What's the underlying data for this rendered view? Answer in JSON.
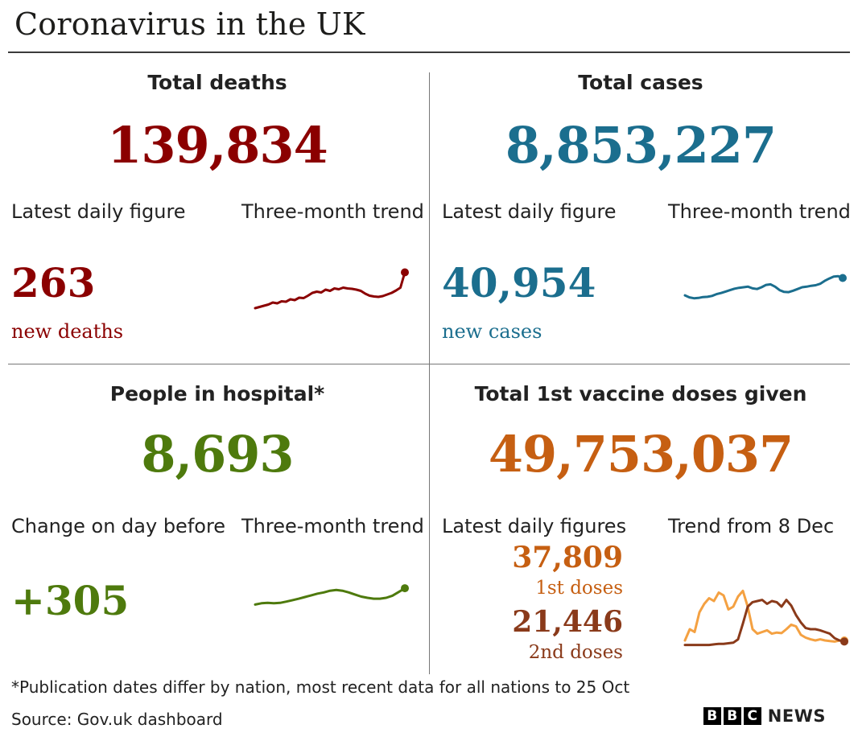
{
  "title": "Coronavirus in the UK",
  "deaths": {
    "heading": "Total deaths",
    "total": "139,834",
    "latest_label": "Latest daily figure",
    "trend_label": "Three-month trend",
    "daily": "263",
    "daily_label": "new deaths",
    "color": "#8b0000"
  },
  "cases": {
    "heading": "Total cases",
    "total": "8,853,227",
    "latest_label": "Latest daily figure",
    "trend_label": "Three-month trend",
    "daily": "40,954",
    "daily_label": "new cases",
    "color": "#1b6e8e"
  },
  "hospital": {
    "heading": "People in hospital*",
    "total": "8,693",
    "latest_label": "Change on day before",
    "trend_label": "Three-month trend",
    "daily": "+305",
    "color": "#4e7a0d"
  },
  "vaccine": {
    "heading": "Total 1st vaccine doses given",
    "total": "49,753,037",
    "latest_label": "Latest daily figures",
    "trend_label": "Trend from 8 Dec",
    "first_doses": "37,809",
    "first_label": "1st doses",
    "second_doses": "21,446",
    "second_label": "2nd doses",
    "color_total": "#c65f12",
    "color_first": "#f4a142",
    "color_second": "#8a3a1a"
  },
  "footnote": "*Publication dates differ by nation, most recent data for all nations to 25 Oct",
  "source": "Source: Gov.uk dashboard",
  "logo": {
    "letters": [
      "B",
      "B",
      "C"
    ],
    "word": "NEWS"
  },
  "chart_data": [
    {
      "type": "line",
      "series": [
        {
          "values": [
            0.04,
            0.07,
            0.1,
            0.13,
            0.18,
            0.16,
            0.21,
            0.2,
            0.26,
            0.24,
            0.3,
            0.29,
            0.35,
            0.42,
            0.45,
            0.43,
            0.5,
            0.47,
            0.53,
            0.51,
            0.55,
            0.53,
            0.52,
            0.5,
            0.47,
            0.4,
            0.35,
            0.33,
            0.32,
            0.34,
            0.38,
            0.42,
            0.48,
            0.55,
            0.93
          ]
        }
      ]
    },
    {
      "type": "line",
      "series": [
        {
          "values": [
            0.22,
            0.15,
            0.12,
            0.13,
            0.16,
            0.17,
            0.2,
            0.26,
            0.3,
            0.35,
            0.4,
            0.45,
            0.48,
            0.5,
            0.52,
            0.46,
            0.44,
            0.5,
            0.58,
            0.6,
            0.52,
            0.4,
            0.34,
            0.33,
            0.38,
            0.44,
            0.5,
            0.52,
            0.55,
            0.57,
            0.62,
            0.72,
            0.8,
            0.87,
            0.88,
            0.82
          ]
        }
      ]
    },
    {
      "type": "line",
      "series": [
        {
          "values": [
            0.14,
            0.2,
            0.22,
            0.2,
            0.22,
            0.28,
            0.35,
            0.42,
            0.5,
            0.58,
            0.66,
            0.72,
            0.8,
            0.84,
            0.8,
            0.72,
            0.62,
            0.52,
            0.46,
            0.42,
            0.42,
            0.46,
            0.56,
            0.74,
            0.92
          ]
        }
      ]
    },
    {
      "type": "line",
      "series": [
        {
          "name": "1st doses",
          "values": [
            0.1,
            0.3,
            0.25,
            0.6,
            0.75,
            0.85,
            0.8,
            0.95,
            0.9,
            0.65,
            0.7,
            0.88,
            0.98,
            0.7,
            0.3,
            0.22,
            0.25,
            0.28,
            0.22,
            0.24,
            0.23,
            0.3,
            0.38,
            0.35,
            0.2,
            0.15,
            0.12,
            0.1,
            0.12,
            0.1,
            0.09,
            0.08,
            0.1,
            0.1
          ]
        },
        {
          "name": "2nd doses",
          "values": [
            0.02,
            0.02,
            0.02,
            0.02,
            0.02,
            0.02,
            0.03,
            0.04,
            0.04,
            0.05,
            0.06,
            0.12,
            0.4,
            0.7,
            0.78,
            0.8,
            0.82,
            0.75,
            0.8,
            0.78,
            0.7,
            0.82,
            0.72,
            0.55,
            0.42,
            0.32,
            0.3,
            0.3,
            0.28,
            0.25,
            0.22,
            0.14,
            0.1,
            0.08
          ]
        }
      ]
    }
  ]
}
